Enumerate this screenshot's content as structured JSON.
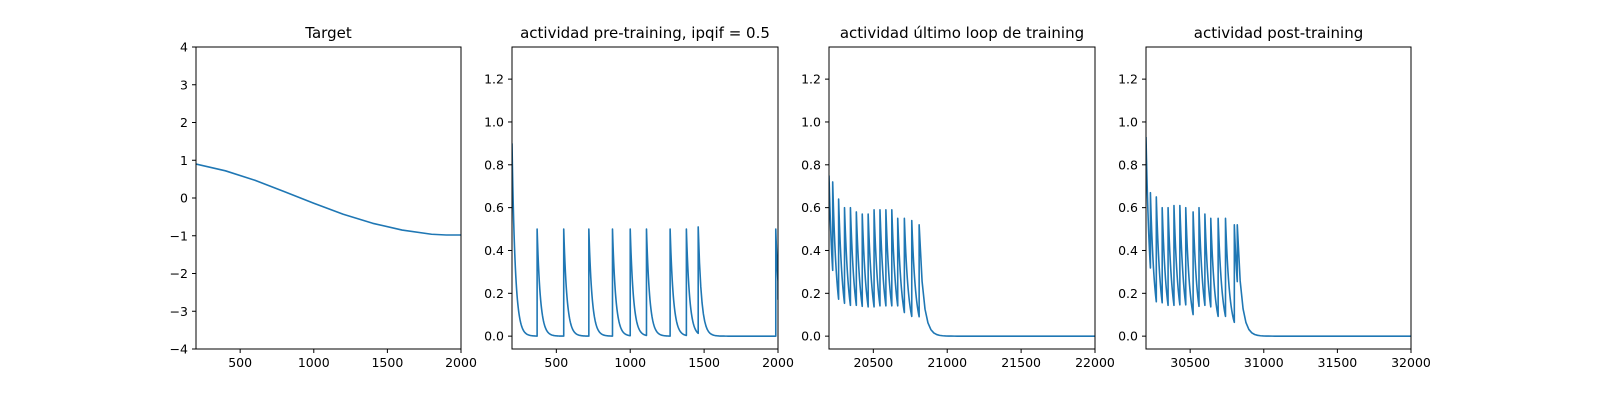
{
  "chart_data": [
    {
      "type": "line",
      "title": "Target",
      "xlim": [
        200,
        2000
      ],
      "ylim": [
        -4,
        4
      ],
      "xticks": [
        500,
        1000,
        1500,
        2000
      ],
      "yticks": [
        -4,
        -3,
        -2,
        -1,
        0,
        1,
        2,
        3,
        4
      ],
      "xtick_labels": [
        "500",
        "1000",
        "1500",
        "2000"
      ],
      "ytick_labels": [
        "−4",
        "−3",
        "−2",
        "−1",
        "0",
        "1",
        "2",
        "3",
        "4"
      ],
      "line_color": "#1f77b4",
      "series": [
        {
          "x": [
            200,
            400,
            600,
            800,
            1000,
            1200,
            1400,
            1600,
            1800,
            1900,
            2000
          ],
          "values": [
            0.9,
            0.72,
            0.47,
            0.17,
            -0.14,
            -0.43,
            -0.67,
            -0.85,
            -0.96,
            -0.98,
            -0.98
          ]
        }
      ]
    },
    {
      "type": "line",
      "title": "actividad pre-training, ipqif = 0.5",
      "xlim": [
        200,
        2000
      ],
      "ylim": [
        -0.06,
        1.35
      ],
      "xticks": [
        500,
        1000,
        1500,
        2000
      ],
      "yticks": [
        0.0,
        0.2,
        0.4,
        0.6,
        0.8,
        1.0,
        1.2
      ],
      "xtick_labels": [
        "500",
        "1000",
        "1500",
        "2000"
      ],
      "ytick_labels": [
        "0.0",
        "0.2",
        "0.4",
        "0.6",
        "0.8",
        "1.0",
        "1.2"
      ],
      "line_color": "#1f77b4",
      "start_value": 0.9,
      "spike_times": [
        370,
        550,
        720,
        880,
        1000,
        1110,
        1270,
        1380,
        1460,
        1985
      ],
      "spike_peaks": [
        0.5,
        0.5,
        0.5,
        0.5,
        0.5,
        0.5,
        0.5,
        0.5,
        0.51,
        0.5
      ],
      "decay_time": 22,
      "baseline": 0.0,
      "end_value": 0.17
    },
    {
      "type": "line",
      "title": "actividad último loop de training",
      "xlim": [
        20200,
        22000
      ],
      "ylim": [
        -0.06,
        1.35
      ],
      "xticks": [
        20500,
        21000,
        21500,
        22000
      ],
      "yticks": [
        0.0,
        0.2,
        0.4,
        0.6,
        0.8,
        1.0,
        1.2
      ],
      "xtick_labels": [
        "20500",
        "21000",
        "21500",
        "22000"
      ],
      "ytick_labels": [
        "0.0",
        "0.2",
        "0.4",
        "0.6",
        "0.8",
        "1.0",
        "1.2"
      ],
      "line_color": "#1f77b4",
      "start_value": 0.75,
      "spike_times": [
        20225,
        20265,
        20305,
        20345,
        20385,
        20425,
        20465,
        20505,
        20545,
        20585,
        20625,
        20665,
        20710,
        20760,
        20810
      ],
      "spike_peaks": [
        0.72,
        0.64,
        0.6,
        0.6,
        0.58,
        0.57,
        0.57,
        0.59,
        0.59,
        0.59,
        0.59,
        0.55,
        0.55,
        0.54,
        0.52
      ],
      "decay_time": 28,
      "baseline": 0.0
    },
    {
      "type": "line",
      "title": "actividad post-training",
      "xlim": [
        30200,
        32000
      ],
      "ylim": [
        -0.06,
        1.35
      ],
      "xticks": [
        30500,
        31000,
        31500,
        32000
      ],
      "yticks": [
        0.0,
        0.2,
        0.4,
        0.6,
        0.8,
        1.0,
        1.2
      ],
      "xtick_labels": [
        "30500",
        "31000",
        "31500",
        "32000"
      ],
      "ytick_labels": [
        "0.0",
        "0.2",
        "0.4",
        "0.6",
        "0.8",
        "1.0",
        "1.2"
      ],
      "line_color": "#1f77b4",
      "start_value": 0.93,
      "spike_times": [
        30230,
        30270,
        30310,
        30350,
        30390,
        30430,
        30470,
        30520,
        30560,
        30600,
        30640,
        30690,
        30740,
        30800,
        30820
      ],
      "spike_peaks": [
        0.67,
        0.65,
        0.6,
        0.6,
        0.61,
        0.61,
        0.6,
        0.58,
        0.6,
        0.57,
        0.55,
        0.55,
        0.55,
        0.52,
        0.52
      ],
      "decay_time": 28,
      "baseline": 0.0
    }
  ]
}
